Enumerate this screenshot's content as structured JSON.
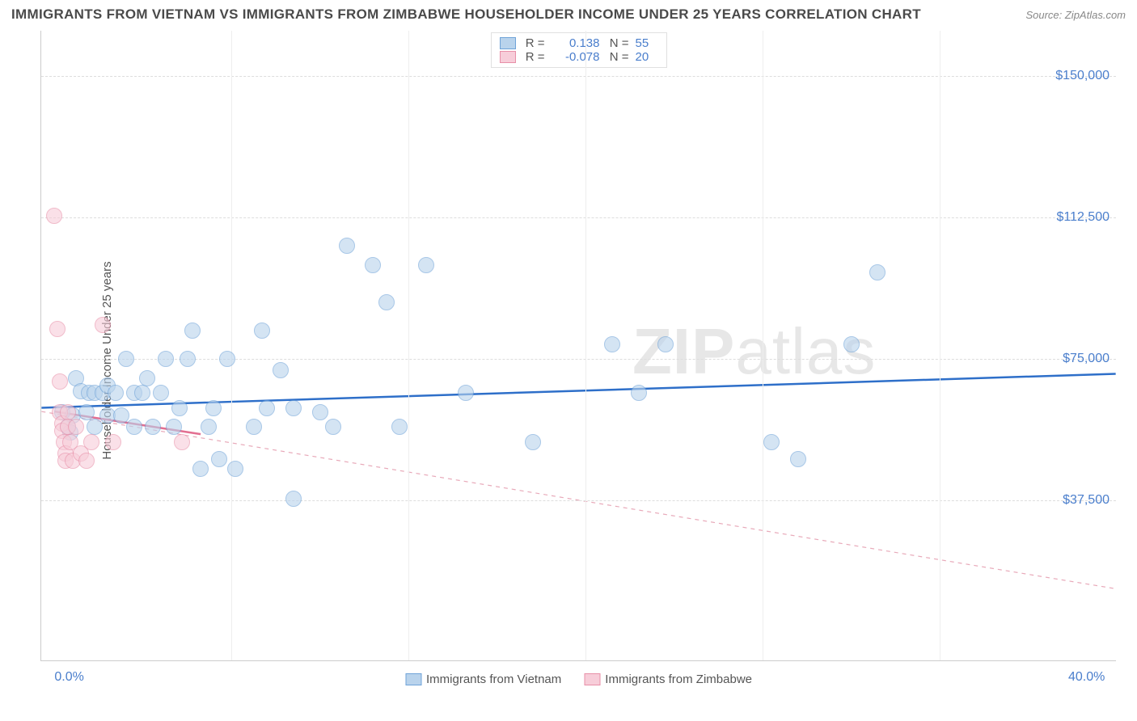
{
  "title": "IMMIGRANTS FROM VIETNAM VS IMMIGRANTS FROM ZIMBABWE HOUSEHOLDER INCOME UNDER 25 YEARS CORRELATION CHART",
  "source": "Source: ZipAtlas.com",
  "watermark_a": "ZIP",
  "watermark_b": "atlas",
  "chart": {
    "type": "scatter",
    "background_color": "#ffffff",
    "grid_color": "#dddddd",
    "axis_color": "#cccccc",
    "ylabel": "Householder Income Under 25 years",
    "label_fontsize": 15,
    "tick_fontsize": 16,
    "tick_color": "#4a7ecc",
    "xlim": [
      -0.5,
      40.0
    ],
    "ylim": [
      -5000,
      162000
    ],
    "x_ticks": [
      {
        "v": 0.0,
        "label": "0.0%"
      },
      {
        "v": 40.0,
        "label": "40.0%"
      }
    ],
    "x_grid": [
      6.67,
      13.33,
      20.0,
      26.67,
      33.33
    ],
    "y_ticks": [
      {
        "v": 37500,
        "label": "$37,500"
      },
      {
        "v": 75000,
        "label": "$75,000"
      },
      {
        "v": 112500,
        "label": "$112,500"
      },
      {
        "v": 150000,
        "label": "$150,000"
      }
    ],
    "marker_radius": 10,
    "marker_border_width": 1.5,
    "trend_line_width": 2.5
  },
  "series": [
    {
      "name": "Immigrants from Vietnam",
      "fill": "#b9d3ec",
      "stroke": "#6fa3d8",
      "fill_opacity": 0.6,
      "trend": {
        "y_at_xmin": 62000,
        "y_at_xmax": 71000,
        "color": "#2e6fc9",
        "dash": "none"
      },
      "points": [
        [
          0.3,
          61000
        ],
        [
          0.5,
          57000
        ],
        [
          0.6,
          55500
        ],
        [
          0.7,
          60000
        ],
        [
          0.8,
          70000
        ],
        [
          1.0,
          66500
        ],
        [
          1.2,
          61000
        ],
        [
          1.3,
          66000
        ],
        [
          1.5,
          66000
        ],
        [
          1.5,
          57000
        ],
        [
          1.8,
          66000
        ],
        [
          2.0,
          68000
        ],
        [
          2.0,
          60000
        ],
        [
          2.3,
          66000
        ],
        [
          2.5,
          60000
        ],
        [
          2.7,
          75000
        ],
        [
          3.0,
          66000
        ],
        [
          3.0,
          57000
        ],
        [
          3.3,
          66000
        ],
        [
          3.5,
          70000
        ],
        [
          3.7,
          57000
        ],
        [
          4.0,
          66000
        ],
        [
          4.2,
          75000
        ],
        [
          4.5,
          57000
        ],
        [
          4.7,
          62000
        ],
        [
          5.0,
          75000
        ],
        [
          5.2,
          82500
        ],
        [
          5.5,
          46000
        ],
        [
          5.8,
          57000
        ],
        [
          6.0,
          62000
        ],
        [
          6.2,
          48500
        ],
        [
          6.5,
          75000
        ],
        [
          6.8,
          46000
        ],
        [
          7.5,
          57000
        ],
        [
          7.8,
          82500
        ],
        [
          8.0,
          62000
        ],
        [
          8.5,
          72000
        ],
        [
          9.0,
          38000
        ],
        [
          9.0,
          62000
        ],
        [
          10.0,
          61000
        ],
        [
          10.5,
          57000
        ],
        [
          11.0,
          105000
        ],
        [
          12.0,
          100000
        ],
        [
          12.5,
          90000
        ],
        [
          13.0,
          57000
        ],
        [
          14.0,
          100000
        ],
        [
          15.5,
          66000
        ],
        [
          18.0,
          53000
        ],
        [
          21.0,
          79000
        ],
        [
          22.0,
          66000
        ],
        [
          23.0,
          79000
        ],
        [
          27.0,
          53000
        ],
        [
          28.0,
          48500
        ],
        [
          30.0,
          79000
        ],
        [
          31.0,
          98000
        ]
      ]
    },
    {
      "name": "Immigrants from Zimbabwe",
      "fill": "#f7cdd9",
      "stroke": "#e88fa8",
      "fill_opacity": 0.6,
      "trend_solid": {
        "y_at_x0": 61000,
        "y_at_x": 5.5,
        "y_val": 55000,
        "color": "#e36f91",
        "dash": "none"
      },
      "trend_dashed": {
        "y_at_xmin": 61000,
        "y_at_xmax": 14000,
        "color": "#e8a9b9",
        "dash": "5,5"
      },
      "points": [
        [
          0.0,
          113000
        ],
        [
          0.1,
          83000
        ],
        [
          0.2,
          69000
        ],
        [
          0.2,
          61000
        ],
        [
          0.3,
          58000
        ],
        [
          0.3,
          56000
        ],
        [
          0.35,
          53000
        ],
        [
          0.4,
          50000
        ],
        [
          0.4,
          48000
        ],
        [
          0.5,
          61000
        ],
        [
          0.5,
          57000
        ],
        [
          0.6,
          53000
        ],
        [
          0.7,
          48000
        ],
        [
          0.8,
          57000
        ],
        [
          1.0,
          50000
        ],
        [
          1.2,
          48000
        ],
        [
          1.4,
          53000
        ],
        [
          1.8,
          84000
        ],
        [
          2.2,
          53000
        ],
        [
          4.8,
          53000
        ]
      ]
    }
  ],
  "stats": {
    "rows": [
      {
        "swatch_fill": "#b9d3ec",
        "swatch_stroke": "#6fa3d8",
        "r_label": "R =",
        "r": "0.138",
        "n_label": "N =",
        "n": "55"
      },
      {
        "swatch_fill": "#f7cdd9",
        "swatch_stroke": "#e88fa8",
        "r_label": "R =",
        "r": "-0.078",
        "n_label": "N =",
        "n": "20"
      }
    ]
  },
  "legend": [
    {
      "swatch_fill": "#b9d3ec",
      "swatch_stroke": "#6fa3d8",
      "label": "Immigrants from Vietnam"
    },
    {
      "swatch_fill": "#f7cdd9",
      "swatch_stroke": "#e88fa8",
      "label": "Immigrants from Zimbabwe"
    }
  ]
}
